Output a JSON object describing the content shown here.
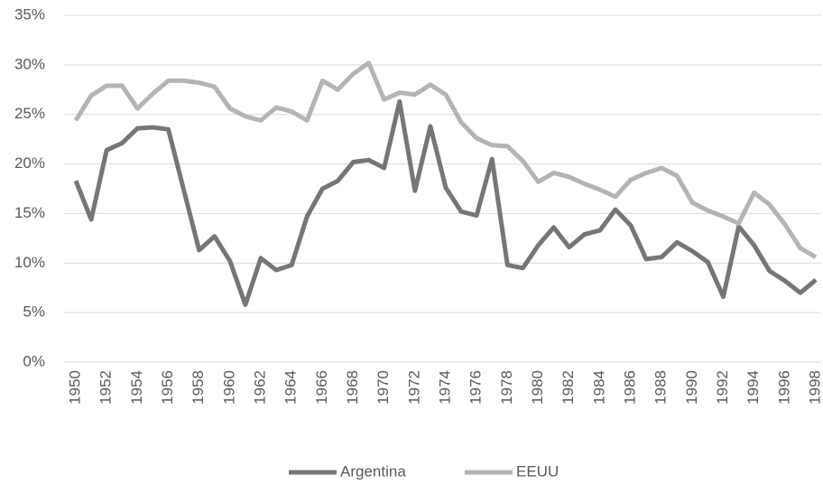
{
  "chart_data": {
    "type": "line",
    "x": [
      1950,
      1951,
      1952,
      1953,
      1954,
      1955,
      1956,
      1957,
      1958,
      1959,
      1960,
      1961,
      1962,
      1963,
      1964,
      1965,
      1966,
      1967,
      1968,
      1969,
      1970,
      1971,
      1972,
      1973,
      1974,
      1975,
      1976,
      1977,
      1978,
      1979,
      1980,
      1981,
      1982,
      1983,
      1984,
      1985,
      1986,
      1987,
      1988,
      1989,
      1990,
      1991,
      1992,
      1993,
      1994,
      1995,
      1996,
      1997,
      1998
    ],
    "xlim": [
      1950,
      1998
    ],
    "xticks": [
      1950,
      1952,
      1954,
      1956,
      1958,
      1960,
      1962,
      1964,
      1966,
      1968,
      1970,
      1972,
      1974,
      1976,
      1978,
      1980,
      1982,
      1984,
      1986,
      1988,
      1990,
      1992,
      1994,
      1996,
      1998
    ],
    "ylim": [
      0,
      35
    ],
    "yticks": [
      {
        "value": 0,
        "label": "0%"
      },
      {
        "value": 5,
        "label": "5%"
      },
      {
        "value": 10,
        "label": "10%"
      },
      {
        "value": 15,
        "label": "15%"
      },
      {
        "value": 20,
        "label": "20%"
      },
      {
        "value": 25,
        "label": "25%"
      },
      {
        "value": 30,
        "label": "30%"
      },
      {
        "value": 35,
        "label": "35%"
      }
    ],
    "grid": true,
    "legend": "bottom",
    "series": [
      {
        "name": "Argentina",
        "color": "#767676",
        "values": [
          18.3,
          14.4,
          21.4,
          22.1,
          23.6,
          23.7,
          23.5,
          17.4,
          11.3,
          12.7,
          10.2,
          5.8,
          10.5,
          9.3,
          9.8,
          14.7,
          17.5,
          18.3,
          20.2,
          20.4,
          19.6,
          26.3,
          17.3,
          23.8,
          17.6,
          15.2,
          14.8,
          20.5,
          9.8,
          9.5,
          11.8,
          13.6,
          11.6,
          12.9,
          13.3,
          15.4,
          13.8,
          10.4,
          10.6,
          12.1,
          11.2,
          10.1,
          6.6,
          13.7,
          11.8,
          9.2,
          8.2,
          7.0,
          8.3
        ]
      },
      {
        "name": "EEUU",
        "color": "#b4b4b4",
        "values": [
          24.4,
          26.9,
          27.9,
          27.9,
          25.6,
          27.1,
          28.4,
          28.4,
          28.2,
          27.8,
          25.6,
          24.8,
          24.4,
          25.7,
          25.3,
          24.4,
          28.4,
          27.5,
          29.1,
          30.2,
          26.5,
          27.2,
          27.0,
          28.0,
          27.0,
          24.2,
          22.6,
          21.9,
          21.8,
          20.3,
          18.2,
          19.1,
          18.7,
          18.0,
          17.4,
          16.7,
          18.4,
          19.1,
          19.6,
          18.8,
          16.1,
          15.3,
          14.7,
          14.0,
          17.1,
          15.9,
          13.9,
          11.5,
          10.6
        ]
      }
    ]
  }
}
